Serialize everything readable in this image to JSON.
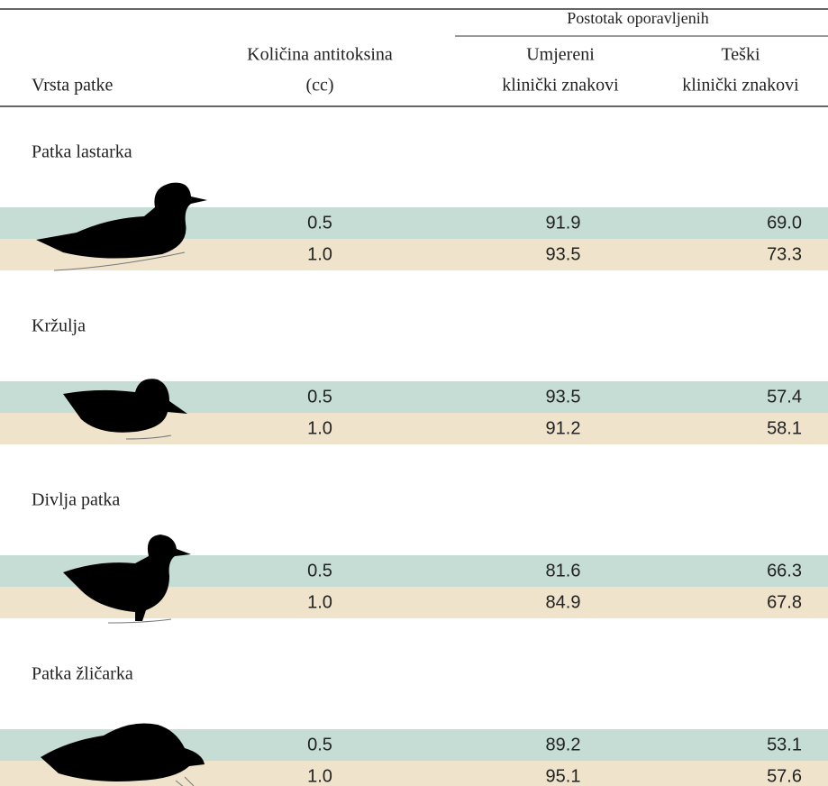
{
  "header": {
    "group": "Postotak oporavljenih",
    "columns": [
      [
        "Vrsta patke"
      ],
      [
        "Količina antitoksina",
        "(cc)"
      ],
      [
        "Umjereni",
        "klinički znakovi"
      ],
      [
        "Teški",
        "klinički znakovi"
      ]
    ]
  },
  "sections": [
    {
      "name": "Patka lastarka",
      "rows": [
        [
          "0.5",
          "91.9",
          "69.0"
        ],
        [
          "1.0",
          "93.5",
          "73.3"
        ]
      ]
    },
    {
      "name": "Kržulja",
      "rows": [
        [
          "0.5",
          "93.5",
          "57.4"
        ],
        [
          "1.0",
          "91.2",
          "58.1"
        ]
      ]
    },
    {
      "name": "Divlja patka",
      "rows": [
        [
          "0.5",
          "81.6",
          "66.3"
        ],
        [
          "1.0",
          "84.9",
          "67.8"
        ]
      ]
    },
    {
      "name": "Patka žličarka",
      "rows": [
        [
          "0.5",
          "89.2",
          "53.1"
        ],
        [
          "1.0",
          "95.1",
          "57.6"
        ]
      ]
    }
  ]
}
